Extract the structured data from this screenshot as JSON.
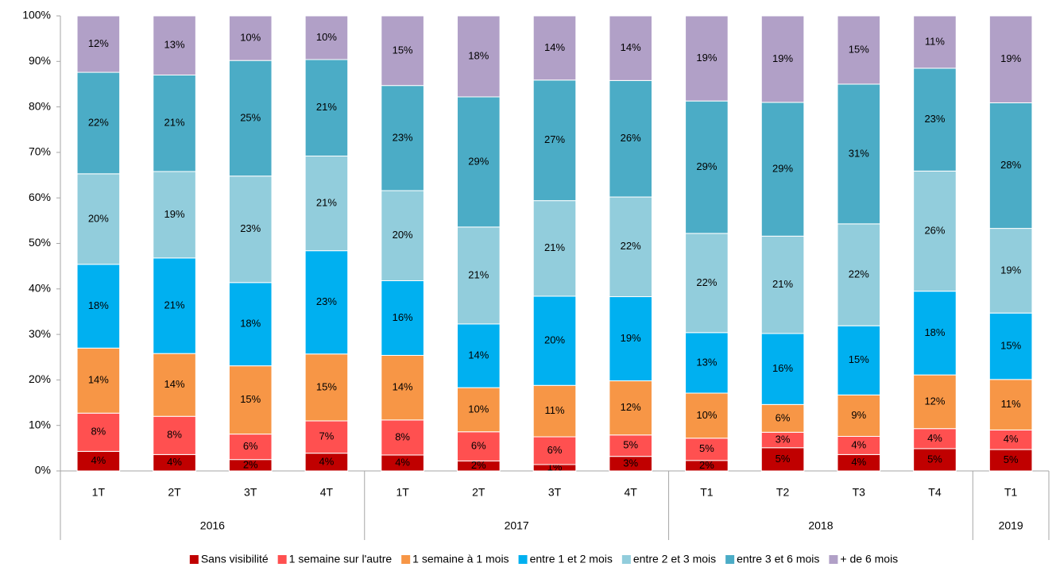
{
  "chart_data": {
    "type": "stacked-bar-100",
    "groups": [
      {
        "name": "2016",
        "categories": [
          "1T",
          "2T",
          "3T",
          "4T"
        ]
      },
      {
        "name": "2017",
        "categories": [
          "1T",
          "2T",
          "3T",
          "4T"
        ]
      },
      {
        "name": "2018",
        "categories": [
          "T1",
          "T2",
          "T3",
          "T4"
        ]
      },
      {
        "name": "2019",
        "categories": [
          "T1"
        ]
      }
    ],
    "ylim": [
      0,
      100
    ],
    "yticks": [
      {
        "value": 0,
        "label": "0%"
      },
      {
        "value": 10,
        "label": "10%"
      },
      {
        "value": 20,
        "label": "20%"
      },
      {
        "value": 30,
        "label": "30%"
      },
      {
        "value": 40,
        "label": "40%"
      },
      {
        "value": 50,
        "label": "50%"
      },
      {
        "value": 60,
        "label": "60%"
      },
      {
        "value": 70,
        "label": "70%"
      },
      {
        "value": 80,
        "label": "80%"
      },
      {
        "value": 90,
        "label": "90%"
      },
      {
        "value": 100,
        "label": "100%"
      }
    ],
    "legend": "bottom",
    "series": [
      {
        "name": "Sans visibilité",
        "color": "#c00000",
        "values": [
          4.3,
          3.6,
          2.5,
          3.9,
          3.5,
          2.2,
          1.4,
          3.2,
          2.3,
          5.1,
          3.6,
          4.9,
          4.7
        ],
        "value_labels": [
          "4%",
          "4%",
          "2%",
          "4%",
          "4%",
          "2%",
          "1%",
          "3%",
          "2%",
          "5%",
          "4%",
          "5%",
          "5%"
        ]
      },
      {
        "name": "1 semaine sur l'autre",
        "color": "#ff5050",
        "values": [
          8.4,
          8.4,
          5.6,
          7.1,
          7.7,
          6.4,
          6.1,
          4.7,
          4.9,
          3.4,
          4.0,
          4.4,
          4.3
        ],
        "value_labels": [
          "8%",
          "8%",
          "6%",
          "7%",
          "8%",
          "6%",
          "6%",
          "5%",
          "5%",
          "3%",
          "4%",
          "4%",
          "4%"
        ]
      },
      {
        "name": "1 semaine à 1 mois",
        "color": "#f79646",
        "values": [
          14.3,
          13.8,
          15.0,
          14.7,
          14.2,
          9.7,
          11.3,
          11.9,
          9.9,
          6.1,
          9.1,
          11.8,
          11.1
        ],
        "value_labels": [
          "14%",
          "14%",
          "15%",
          "15%",
          "14%",
          "10%",
          "11%",
          "12%",
          "10%",
          "6%",
          "9%",
          "12%",
          "11%"
        ]
      },
      {
        "name": "entre 1 et 2 mois",
        "color": "#00b0f0",
        "values": [
          18.4,
          21.0,
          18.3,
          22.7,
          16.4,
          14.0,
          19.6,
          18.5,
          13.3,
          15.6,
          15.2,
          18.4,
          14.6
        ],
        "value_labels": [
          "18%",
          "21%",
          "18%",
          "23%",
          "16%",
          "14%",
          "20%",
          "19%",
          "13%",
          "16%",
          "15%",
          "18%",
          "15%"
        ]
      },
      {
        "name": "entre 2 et 3 mois",
        "color": "#92cddc",
        "values": [
          19.9,
          19.0,
          23.4,
          20.8,
          19.8,
          21.3,
          21.0,
          21.9,
          21.8,
          21.4,
          22.4,
          26.4,
          18.6
        ],
        "value_labels": [
          "20%",
          "19%",
          "23%",
          "21%",
          "20%",
          "21%",
          "21%",
          "22%",
          "22%",
          "21%",
          "22%",
          "26%",
          "19%"
        ]
      },
      {
        "name": "entre 3 et 6 mois",
        "color": "#4bacc6",
        "values": [
          22.3,
          21.2,
          25.4,
          21.2,
          23.1,
          28.6,
          26.5,
          25.6,
          29.1,
          29.4,
          30.7,
          22.6,
          27.6
        ],
        "value_labels": [
          "22%",
          "21%",
          "25%",
          "21%",
          "23%",
          "29%",
          "27%",
          "26%",
          "29%",
          "29%",
          "31%",
          "23%",
          "28%"
        ]
      },
      {
        "name": "+ de 6 mois",
        "color": "#b1a0c7",
        "values": [
          12.4,
          13.0,
          9.8,
          9.6,
          15.3,
          17.8,
          14.1,
          14.2,
          18.7,
          19.0,
          15.0,
          11.5,
          19.1
        ],
        "value_labels": [
          "12%",
          "13%",
          "10%",
          "10%",
          "15%",
          "18%",
          "14%",
          "14%",
          "19%",
          "19%",
          "15%",
          "11%",
          "19%"
        ]
      }
    ]
  }
}
